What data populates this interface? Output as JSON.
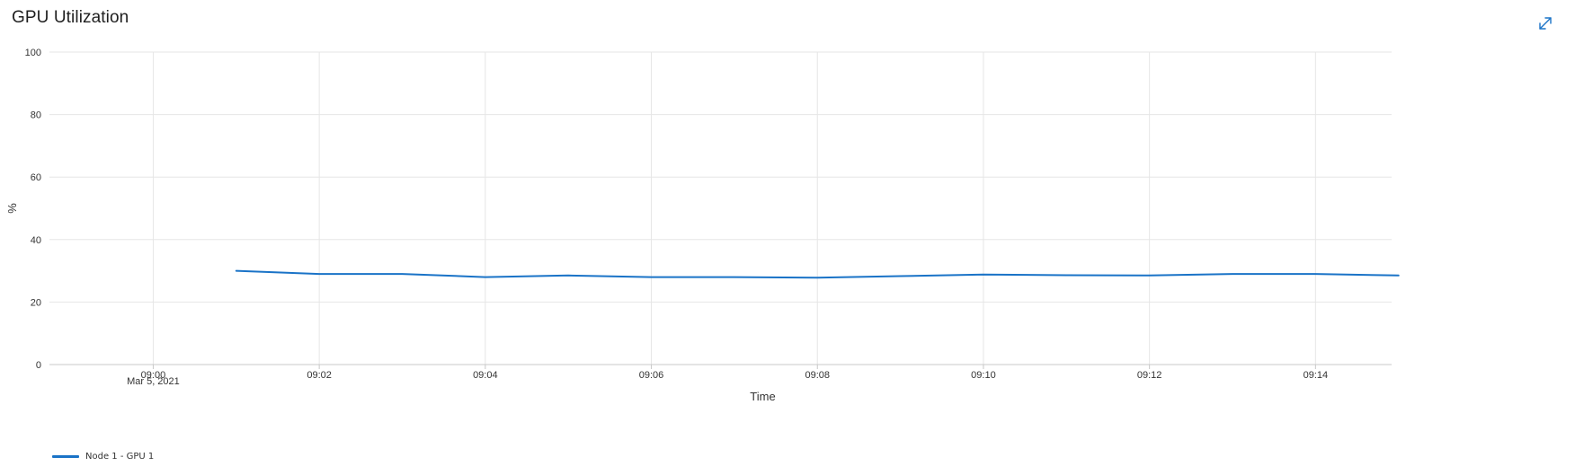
{
  "panel": {
    "title": "GPU Utilization",
    "expand_icon": "expand-diagonal-icon"
  },
  "colors": {
    "series": "#1a73c7",
    "grid": "#e6e6e6",
    "axis": "#c8c8c8",
    "icon": "#1a73c7"
  },
  "chart_data": {
    "type": "line",
    "title": "GPU Utilization",
    "xlabel": "Time",
    "ylabel": "%",
    "x_tick_labels": [
      "09:00",
      "09:02",
      "09:04",
      "09:06",
      "09:08",
      "09:10",
      "09:12",
      "09:14"
    ],
    "x_tick_date": "Mar 5, 2021",
    "x_range": [
      "08:58:45",
      "09:14:55"
    ],
    "ylim": [
      0,
      100
    ],
    "y_ticks": [
      0,
      20,
      40,
      60,
      80,
      100
    ],
    "grid": true,
    "legend_position": "bottom-left",
    "series": [
      {
        "name": "Node 1 - GPU 1",
        "x": [
          "09:01",
          "09:02",
          "09:03",
          "09:04",
          "09:05",
          "09:06",
          "09:07",
          "09:08",
          "09:09",
          "09:10",
          "09:11",
          "09:12",
          "09:13",
          "09:14",
          "09:15"
        ],
        "y": [
          30,
          29,
          29,
          28,
          28.5,
          28,
          28,
          27.8,
          28.3,
          28.8,
          28.6,
          28.5,
          29,
          29,
          28.5
        ]
      }
    ]
  }
}
